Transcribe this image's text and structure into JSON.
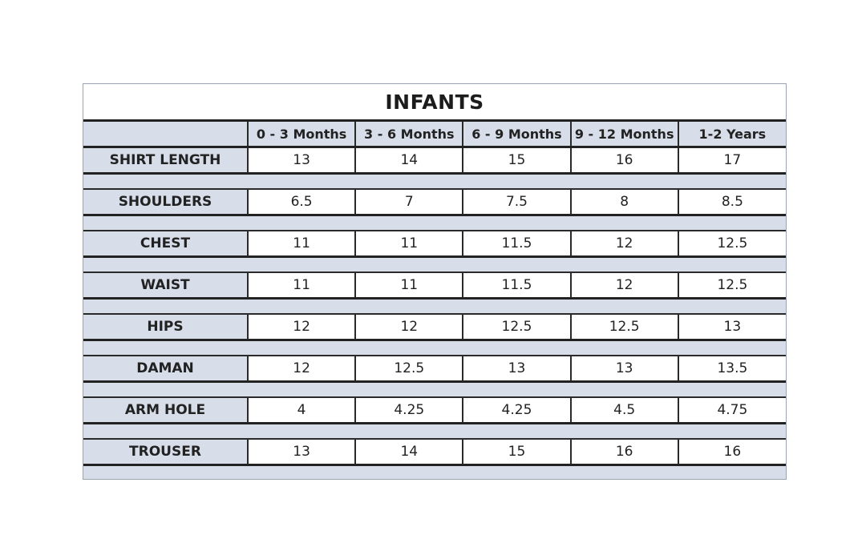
{
  "title": "INFANTS",
  "columns": [
    "0 - 3 Months",
    "3 - 6 Months",
    "6 - 9 Months",
    "9 - 12 Months",
    "1-2 Years"
  ],
  "rows": [
    {
      "label": "SHIRT LENGTH",
      "values": [
        "13",
        "14",
        "15",
        "16",
        "17"
      ]
    },
    {
      "label": "SHOULDERS",
      "values": [
        "6.5",
        "7",
        "7.5",
        "8",
        "8.5"
      ]
    },
    {
      "label": "CHEST",
      "values": [
        "11",
        "11",
        "11.5",
        "12",
        "12.5"
      ]
    },
    {
      "label": "WAIST",
      "values": [
        "11",
        "11",
        "11.5",
        "12",
        "12.5"
      ]
    },
    {
      "label": "HIPS",
      "values": [
        "12",
        "12",
        "12.5",
        "12.5",
        "13"
      ]
    },
    {
      "label": "DAMAN",
      "values": [
        "12",
        "12.5",
        "13",
        "13",
        "13.5"
      ]
    },
    {
      "label": "ARM HOLE",
      "values": [
        "4",
        "4.25",
        "4.25",
        "4.5",
        "4.75"
      ]
    },
    {
      "label": "TROUSER",
      "values": [
        "13",
        "14",
        "15",
        "16",
        "16"
      ]
    }
  ],
  "colors": {
    "label_bg": "#d7deea",
    "border": "#222222",
    "cell_bg": "#ffffff"
  }
}
